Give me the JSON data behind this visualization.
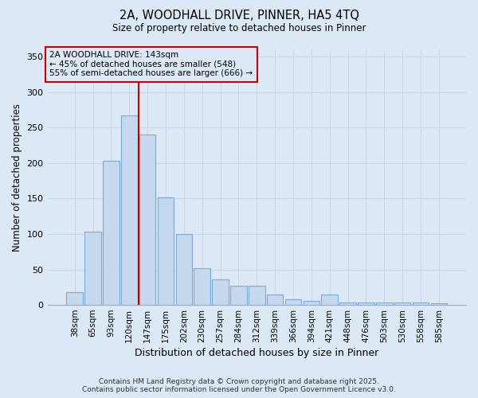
{
  "title_line1": "2A, WOODHALL DRIVE, PINNER, HA5 4TQ",
  "title_line2": "Size of property relative to detached houses in Pinner",
  "xlabel": "Distribution of detached houses by size in Pinner",
  "ylabel": "Number of detached properties",
  "bar_labels": [
    "38sqm",
    "65sqm",
    "93sqm",
    "120sqm",
    "147sqm",
    "175sqm",
    "202sqm",
    "230sqm",
    "257sqm",
    "284sqm",
    "312sqm",
    "339sqm",
    "366sqm",
    "394sqm",
    "421sqm",
    "448sqm",
    "476sqm",
    "503sqm",
    "530sqm",
    "558sqm",
    "585sqm"
  ],
  "bar_values": [
    18,
    103,
    203,
    267,
    240,
    152,
    100,
    52,
    36,
    27,
    27,
    15,
    8,
    6,
    15,
    4,
    3,
    4,
    4,
    4,
    2
  ],
  "bar_color": "#c5d8ee",
  "bar_edge_color": "#7aadd4",
  "vline_color": "#cc0000",
  "vline_x": 3.5,
  "ylim": [
    0,
    360
  ],
  "yticks": [
    0,
    50,
    100,
    150,
    200,
    250,
    300,
    350
  ],
  "annotation_text": "2A WOODHALL DRIVE: 143sqm\n← 45% of detached houses are smaller (548)\n55% of semi-detached houses are larger (666) →",
  "annotation_box_edgecolor": "#cc0000",
  "bg_color": "#dce8f5",
  "grid_color": "#c8d8e8",
  "footer_line1": "Contains HM Land Registry data © Crown copyright and database right 2025.",
  "footer_line2": "Contains public sector information licensed under the Open Government Licence v3.0."
}
